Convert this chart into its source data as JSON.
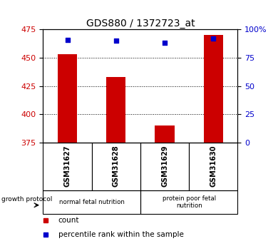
{
  "title": "GDS880 / 1372723_at",
  "samples": [
    "GSM31627",
    "GSM31628",
    "GSM31629",
    "GSM31630"
  ],
  "red_values": [
    453,
    433,
    390,
    470
  ],
  "blue_percentiles": [
    91,
    90,
    88,
    92
  ],
  "ylim_left": [
    375,
    475
  ],
  "yticks_left": [
    375,
    400,
    425,
    450,
    475
  ],
  "yticks_right": [
    0,
    25,
    50,
    75,
    100
  ],
  "ylim_right": [
    0,
    100
  ],
  "bar_color": "#cc0000",
  "dot_color": "#0000cc",
  "bar_width": 0.4,
  "groups": [
    {
      "label": "normal fetal nutrition",
      "samples": [
        0,
        1
      ],
      "color": "#ccffcc"
    },
    {
      "label": "protein poor fetal\nnutrition",
      "samples": [
        2,
        3
      ],
      "color": "#55ee55"
    }
  ],
  "group_label": "growth protocol",
  "legend_items": [
    {
      "color": "#cc0000",
      "label": "count"
    },
    {
      "color": "#0000cc",
      "label": "percentile rank within the sample"
    }
  ],
  "tick_label_color_left": "#cc0000",
  "tick_label_color_right": "#0000cc",
  "title_fontsize": 10,
  "sample_bg": "#cccccc"
}
